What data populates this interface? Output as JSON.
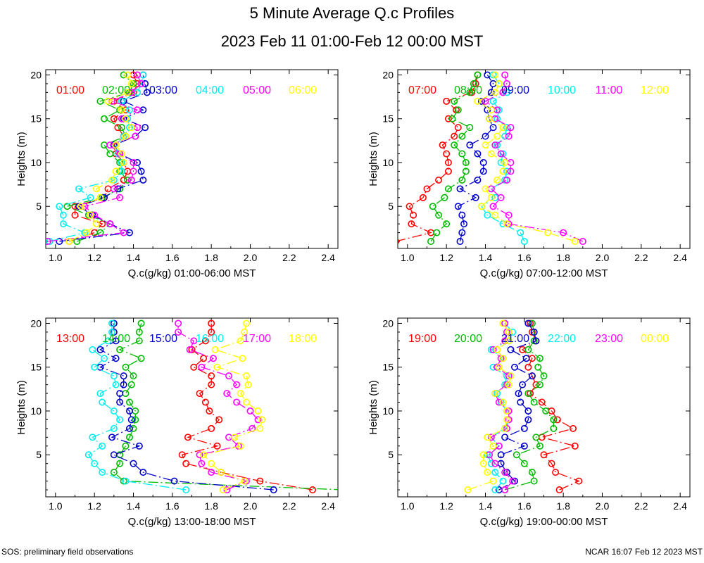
{
  "title": "5 Minute Average Q.c Profiles",
  "subtitle": "2023 Feb 11 01:00-Feb 12 00:00 MST",
  "footer_left": "SOS: preliminary field observations",
  "footer_right": "NCAR 16:07 Feb 12 2023 MST",
  "series_colors": [
    "#ff0000",
    "#00bb00",
    "#0000cc",
    "#00eeee",
    "#ff00ff",
    "#ffff00"
  ],
  "chart_data": [
    {
      "type": "line",
      "xlabel": "Q.c(g/kg) 01:00-06:00 MST",
      "ylabel": "Heights (m)",
      "xlim": [
        0.95,
        2.45
      ],
      "ylim": [
        0.2,
        20.6
      ],
      "xticks": [
        "1.0",
        "1.2",
        "1.4",
        "1.6",
        "1.8",
        "2.0",
        "2.2",
        "2.4"
      ],
      "yticks": [
        "5",
        "10",
        "15",
        "20"
      ],
      "heights": [
        1,
        2,
        3,
        4,
        5,
        6,
        7,
        8,
        9,
        10,
        11,
        12,
        13,
        14,
        15,
        16,
        17,
        18,
        19,
        20
      ],
      "series": [
        {
          "name": "01:00",
          "values": [
            1.07,
            1.2,
            1.24,
            1.1,
            1.1,
            1.25,
            1.27,
            1.35,
            1.37,
            1.35,
            1.31,
            1.3,
            1.35,
            1.32,
            1.3,
            1.36,
            1.3,
            1.4,
            1.42,
            1.4
          ]
        },
        {
          "name": "02:00",
          "values": [
            1.11,
            1.23,
            1.28,
            1.17,
            1.06,
            1.24,
            1.33,
            1.37,
            1.33,
            1.33,
            1.28,
            1.25,
            1.36,
            1.34,
            1.25,
            1.33,
            1.23,
            1.38,
            1.4,
            1.35
          ]
        },
        {
          "name": "03:00",
          "values": [
            1.02,
            1.38,
            1.28,
            1.19,
            1.12,
            1.25,
            1.32,
            1.45,
            1.44,
            1.42,
            1.33,
            1.3,
            1.41,
            1.46,
            1.35,
            1.45,
            1.35,
            1.47,
            1.46,
            1.45
          ]
        },
        {
          "name": "04:00",
          "values": [
            0.97,
            1.15,
            1.04,
            1.04,
            1.02,
            1.18,
            1.12,
            1.3,
            1.34,
            1.34,
            1.32,
            1.31,
            1.35,
            1.38,
            1.37,
            1.38,
            1.34,
            1.42,
            1.44,
            1.45
          ]
        },
        {
          "name": "05:00",
          "values": [
            0.96,
            1.35,
            1.28,
            1.2,
            1.15,
            1.33,
            1.3,
            1.39,
            1.4,
            1.4,
            1.33,
            1.28,
            1.41,
            1.42,
            1.34,
            1.42,
            1.29,
            1.39,
            1.44,
            1.42
          ]
        },
        {
          "name": "06:00",
          "values": [
            1.07,
            1.16,
            1.21,
            1.18,
            1.13,
            1.23,
            1.21,
            1.29,
            1.31,
            1.35,
            1.34,
            1.31,
            1.36,
            1.39,
            1.36,
            1.34,
            1.27,
            1.37,
            1.39,
            1.37
          ]
        }
      ]
    },
    {
      "type": "line",
      "xlabel": "Q.c(g/kg) 07:00-12:00 MST",
      "ylabel": "Heights (m)",
      "xlim": [
        0.95,
        2.45
      ],
      "ylim": [
        0.2,
        20.6
      ],
      "xticks": [
        "1.0",
        "1.2",
        "1.4",
        "1.6",
        "1.8",
        "2.0",
        "2.2",
        "2.4"
      ],
      "yticks": [
        "5",
        "10",
        "15",
        "20"
      ],
      "heights": [
        1,
        2,
        3,
        4,
        5,
        6,
        7,
        8,
        9,
        10,
        11,
        12,
        13,
        14,
        15,
        16,
        17,
        18,
        19,
        20
      ],
      "series": [
        {
          "name": "07:00",
          "values": [
            0.94,
            1.12,
            1.02,
            1.03,
            1.01,
            1.08,
            1.1,
            1.16,
            1.21,
            1.21,
            1.2,
            1.18,
            1.24,
            1.26,
            1.21,
            1.25,
            1.2,
            1.33,
            1.35,
            1.36
          ]
        },
        {
          "name": "08:00",
          "values": [
            1.12,
            1.15,
            1.2,
            1.16,
            1.13,
            1.19,
            1.21,
            1.28,
            1.3,
            1.3,
            1.28,
            1.24,
            1.28,
            1.32,
            1.23,
            1.26,
            1.24,
            1.32,
            1.34,
            1.36
          ]
        },
        {
          "name": "09:00",
          "values": [
            1.27,
            1.28,
            1.29,
            1.28,
            1.26,
            1.35,
            1.27,
            1.36,
            1.39,
            1.39,
            1.36,
            1.32,
            1.4,
            1.44,
            1.42,
            1.41,
            1.38,
            1.43,
            1.44,
            1.41
          ]
        },
        {
          "name": "10:00",
          "values": [
            1.6,
            1.58,
            1.49,
            1.41,
            1.38,
            1.45,
            1.43,
            1.5,
            1.51,
            1.48,
            1.49,
            1.46,
            1.5,
            1.51,
            1.46,
            1.47,
            1.44,
            1.51,
            1.47,
            1.44
          ]
        },
        {
          "name": "11:00",
          "values": [
            1.9,
            1.8,
            1.52,
            1.52,
            1.44,
            1.48,
            1.43,
            1.51,
            1.53,
            1.53,
            1.48,
            1.45,
            1.52,
            1.53,
            1.45,
            1.46,
            1.4,
            1.49,
            1.51,
            1.5
          ]
        },
        {
          "name": "12:00",
          "values": [
            1.86,
            1.72,
            1.51,
            1.45,
            1.38,
            1.43,
            1.4,
            1.46,
            1.49,
            1.5,
            1.43,
            1.4,
            1.46,
            1.49,
            1.42,
            1.43,
            1.36,
            1.45,
            1.47,
            1.45
          ]
        }
      ]
    },
    {
      "type": "line",
      "xlabel": "Q.c(g/kg) 13:00-18:00 MST",
      "ylabel": "Heights (m)",
      "xlim": [
        0.95,
        2.45
      ],
      "ylim": [
        0.2,
        20.6
      ],
      "xticks": [
        "1.0",
        "1.2",
        "1.4",
        "1.6",
        "1.8",
        "2.0",
        "2.2",
        "2.4"
      ],
      "yticks": [
        "5",
        "10",
        "15",
        "20"
      ],
      "heights": [
        1,
        2,
        3,
        4,
        5,
        6,
        7,
        8,
        9,
        10,
        11,
        12,
        13,
        14,
        15,
        16,
        17,
        18,
        19,
        20
      ],
      "series": [
        {
          "name": "13:00",
          "values": [
            2.32,
            2.05,
            1.85,
            1.67,
            1.65,
            1.83,
            1.68,
            1.8,
            1.84,
            1.79,
            1.77,
            1.74,
            1.8,
            1.8,
            1.71,
            1.76,
            1.7,
            1.77,
            1.8,
            1.8
          ]
        },
        {
          "name": "14:00",
          "values": [
            2.48,
            1.35,
            1.3,
            1.33,
            1.33,
            1.36,
            1.38,
            1.4,
            1.41,
            1.41,
            1.38,
            1.36,
            1.39,
            1.4,
            1.36,
            1.44,
            1.33,
            1.43,
            1.43,
            1.44
          ]
        },
        {
          "name": "15:00",
          "values": [
            2.12,
            1.61,
            1.45,
            1.4,
            1.3,
            1.43,
            1.29,
            1.38,
            1.39,
            1.38,
            1.33,
            1.33,
            1.35,
            1.35,
            1.23,
            1.31,
            1.23,
            1.31,
            1.3,
            1.3
          ]
        },
        {
          "name": "16:00",
          "values": [
            1.67,
            1.36,
            1.24,
            1.2,
            1.17,
            1.24,
            1.19,
            1.3,
            1.33,
            1.3,
            1.24,
            1.23,
            1.31,
            1.3,
            1.2,
            1.25,
            1.19,
            1.27,
            1.29,
            1.29
          ]
        },
        {
          "name": "17:00",
          "values": [
            1.88,
            1.98,
            1.8,
            1.75,
            1.74,
            1.94,
            1.89,
            2.01,
            2.04,
            2.0,
            1.93,
            1.88,
            1.93,
            1.89,
            1.75,
            1.81,
            1.69,
            1.71,
            1.63,
            1.63
          ]
        },
        {
          "name": "18:00",
          "values": [
            1.86,
            1.97,
            1.85,
            1.8,
            1.76,
            1.95,
            1.92,
            2.05,
            2.06,
            2.04,
            1.98,
            1.95,
            1.99,
            1.98,
            1.83,
            1.96,
            1.82,
            1.95,
            1.97,
            1.98
          ]
        }
      ]
    },
    {
      "type": "line",
      "xlabel": "Q.c(g/kg) 19:00-00:00 MST",
      "ylabel": "Heights (m)",
      "xlim": [
        0.95,
        2.45
      ],
      "ylim": [
        0.2,
        20.6
      ],
      "xticks": [
        "1.0",
        "1.2",
        "1.4",
        "1.6",
        "1.8",
        "2.0",
        "2.2",
        "2.4"
      ],
      "yticks": [
        "5",
        "10",
        "15",
        "20"
      ],
      "heights": [
        1,
        2,
        3,
        4,
        5,
        6,
        7,
        8,
        9,
        10,
        11,
        12,
        13,
        14,
        15,
        16,
        17,
        18,
        19,
        20
      ],
      "series": [
        {
          "name": "19:00",
          "values": [
            1.78,
            1.88,
            1.76,
            1.74,
            1.7,
            1.86,
            1.69,
            1.85,
            1.77,
            1.74,
            1.69,
            1.63,
            1.66,
            1.64,
            1.62,
            1.64,
            1.59,
            1.66,
            1.64,
            1.63
          ]
        },
        {
          "name": "20:00",
          "values": [
            1.5,
            1.65,
            1.64,
            1.6,
            1.56,
            1.68,
            1.66,
            1.75,
            1.75,
            1.71,
            1.65,
            1.62,
            1.68,
            1.7,
            1.67,
            1.68,
            1.62,
            1.65,
            1.65,
            1.64
          ]
        },
        {
          "name": "21:00",
          "values": [
            1.47,
            1.55,
            1.51,
            1.48,
            1.48,
            1.6,
            1.5,
            1.6,
            1.62,
            1.62,
            1.58,
            1.57,
            1.59,
            1.64,
            1.55,
            1.61,
            1.53,
            1.66,
            1.65,
            1.62
          ]
        },
        {
          "name": "22:00",
          "values": [
            1.45,
            1.49,
            1.45,
            1.43,
            1.41,
            1.47,
            1.43,
            1.5,
            1.52,
            1.51,
            1.48,
            1.46,
            1.5,
            1.51,
            1.44,
            1.49,
            1.43,
            1.52,
            1.54,
            1.5
          ]
        },
        {
          "name": "23:00",
          "values": [
            1.5,
            1.54,
            1.5,
            1.45,
            1.42,
            1.47,
            1.43,
            1.51,
            1.52,
            1.52,
            1.47,
            1.45,
            1.51,
            1.52,
            1.46,
            1.48,
            1.44,
            1.5,
            1.51,
            1.5
          ]
        },
        {
          "name": "00:00",
          "values": [
            1.31,
            1.44,
            1.41,
            1.39,
            1.39,
            1.44,
            1.41,
            1.5,
            1.51,
            1.51,
            1.49,
            1.45,
            1.52,
            1.53,
            1.47,
            1.49,
            1.46,
            1.52,
            1.52,
            1.49
          ]
        }
      ]
    }
  ]
}
